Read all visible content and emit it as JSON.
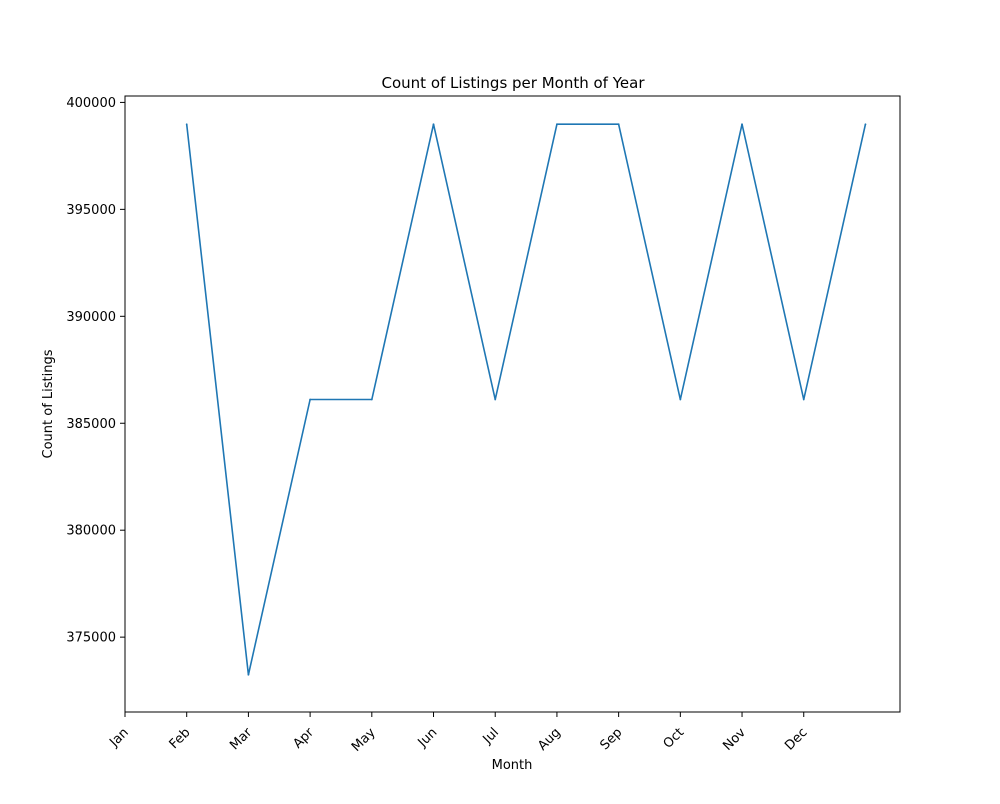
{
  "chart_data": {
    "type": "line",
    "title": "Count of Listings per Month of Year",
    "xlabel": "Month",
    "ylabel": "Count of Listings",
    "categories": [
      "Jan",
      "Feb",
      "Mar",
      "Apr",
      "May",
      "Jun",
      "Jul",
      "Aug",
      "Sep",
      "Oct",
      "Nov",
      "Dec"
    ],
    "x": [
      2,
      3,
      4,
      5,
      6,
      7,
      8,
      9,
      10,
      11,
      12,
      13
    ],
    "series": [
      {
        "values": [
          398980,
          373240,
          386110,
          386110,
          398980,
          386110,
          398980,
          398980,
          386110,
          398980,
          386110,
          398980
        ],
        "color": "#1f77b4"
      }
    ],
    "xlim": [
      1,
      13.56
    ],
    "ylim": [
      371500,
      400300
    ],
    "yticks": [
      375000,
      380000,
      385000,
      390000,
      395000,
      400000
    ],
    "grid": false,
    "legend": "none"
  }
}
